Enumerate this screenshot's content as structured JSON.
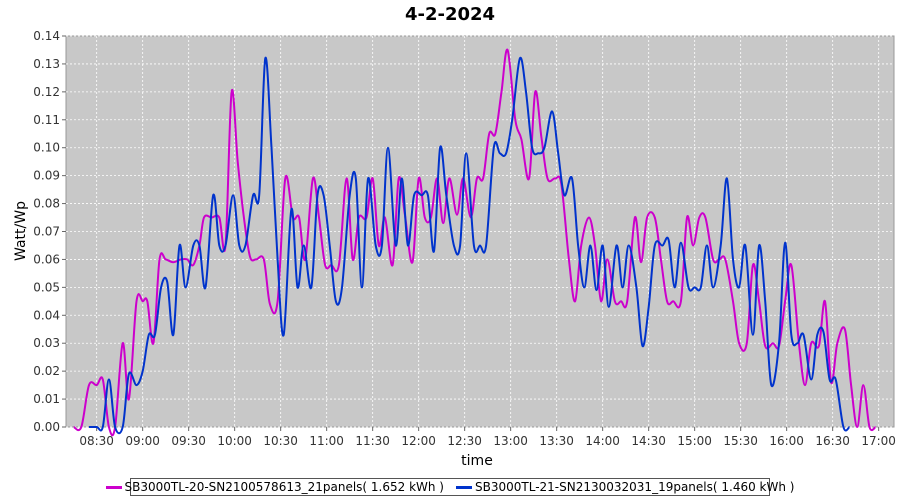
{
  "chart_data": {
    "type": "line",
    "title": "4-2-2024",
    "xlabel": "time",
    "ylabel": "Watt/Wp",
    "x_ticks": [
      "08:30",
      "09:00",
      "09:30",
      "10:00",
      "10:30",
      "11:00",
      "11:30",
      "12:00",
      "12:30",
      "13:00",
      "13:30",
      "14:00",
      "14:30",
      "15:00",
      "15:30",
      "16:00",
      "16:30",
      "17:00"
    ],
    "y_ticks": [
      "0.00",
      "0.01",
      "0.02",
      "0.03",
      "0.04",
      "0.05",
      "0.06",
      "0.07",
      "0.08",
      "0.09",
      "0.10",
      "0.11",
      "0.12",
      "0.13",
      "0.14"
    ],
    "xlim": [
      "08:10",
      "17:10"
    ],
    "ylim": [
      0,
      0.14
    ],
    "grid": true,
    "legend_position": "bottom",
    "series": [
      {
        "name": "SB3000TL-20-SN2100578613_21panels( 1.652 kWh )",
        "color": "#cc00cc",
        "points": [
          [
            "08:15",
            0.0
          ],
          [
            "08:20",
            0.0
          ],
          [
            "08:25",
            0.015
          ],
          [
            "08:30",
            0.015
          ],
          [
            "08:34",
            0.017
          ],
          [
            "08:38",
            0.0
          ],
          [
            "08:42",
            0.0
          ],
          [
            "08:47",
            0.03
          ],
          [
            "08:51",
            0.01
          ],
          [
            "08:56",
            0.045
          ],
          [
            "09:00",
            0.045
          ],
          [
            "09:03",
            0.045
          ],
          [
            "09:07",
            0.03
          ],
          [
            "09:11",
            0.06
          ],
          [
            "09:15",
            0.06
          ],
          [
            "09:20",
            0.059
          ],
          [
            "09:25",
            0.06
          ],
          [
            "09:29",
            0.06
          ],
          [
            "09:33",
            0.058
          ],
          [
            "09:37",
            0.065
          ],
          [
            "09:40",
            0.075
          ],
          [
            "09:45",
            0.075
          ],
          [
            "09:50",
            0.075
          ],
          [
            "09:54",
            0.065
          ],
          [
            "09:58",
            0.12
          ],
          [
            "10:02",
            0.095
          ],
          [
            "10:06",
            0.075
          ],
          [
            "10:10",
            0.061
          ],
          [
            "10:14",
            0.06
          ],
          [
            "10:19",
            0.06
          ],
          [
            "10:23",
            0.044
          ],
          [
            "10:28",
            0.045
          ],
          [
            "10:33",
            0.089
          ],
          [
            "10:38",
            0.075
          ],
          [
            "10:42",
            0.075
          ],
          [
            "10:46",
            0.06
          ],
          [
            "10:51",
            0.089
          ],
          [
            "10:55",
            0.075
          ],
          [
            "10:59",
            0.058
          ],
          [
            "11:03",
            0.058
          ],
          [
            "11:08",
            0.058
          ],
          [
            "11:13",
            0.089
          ],
          [
            "11:17",
            0.06
          ],
          [
            "11:21",
            0.075
          ],
          [
            "11:26",
            0.075
          ],
          [
            "11:30",
            0.089
          ],
          [
            "11:34",
            0.065
          ],
          [
            "11:38",
            0.075
          ],
          [
            "11:43",
            0.058
          ],
          [
            "11:47",
            0.089
          ],
          [
            "11:51",
            0.076
          ],
          [
            "11:56",
            0.059
          ],
          [
            "12:00",
            0.089
          ],
          [
            "12:04",
            0.075
          ],
          [
            "12:08",
            0.075
          ],
          [
            "12:12",
            0.089
          ],
          [
            "12:16",
            0.073
          ],
          [
            "12:20",
            0.089
          ],
          [
            "12:25",
            0.076
          ],
          [
            "12:29",
            0.089
          ],
          [
            "12:34",
            0.075
          ],
          [
            "12:38",
            0.089
          ],
          [
            "12:42",
            0.089
          ],
          [
            "12:46",
            0.105
          ],
          [
            "12:50",
            0.105
          ],
          [
            "12:54",
            0.12
          ],
          [
            "12:58",
            0.135
          ],
          [
            "13:03",
            0.11
          ],
          [
            "13:07",
            0.103
          ],
          [
            "13:12",
            0.089
          ],
          [
            "13:16",
            0.12
          ],
          [
            "13:20",
            0.104
          ],
          [
            "13:24",
            0.089
          ],
          [
            "13:29",
            0.089
          ],
          [
            "13:33",
            0.087
          ],
          [
            "13:38",
            0.06
          ],
          [
            "13:42",
            0.045
          ],
          [
            "13:46",
            0.065
          ],
          [
            "13:51",
            0.075
          ],
          [
            "13:55",
            0.065
          ],
          [
            "13:59",
            0.045
          ],
          [
            "14:03",
            0.06
          ],
          [
            "14:08",
            0.045
          ],
          [
            "14:12",
            0.045
          ],
          [
            "14:16",
            0.045
          ],
          [
            "14:21",
            0.075
          ],
          [
            "14:25",
            0.059
          ],
          [
            "14:29",
            0.075
          ],
          [
            "14:34",
            0.075
          ],
          [
            "14:38",
            0.06
          ],
          [
            "14:42",
            0.045
          ],
          [
            "14:46",
            0.045
          ],
          [
            "14:51",
            0.045
          ],
          [
            "14:55",
            0.075
          ],
          [
            "14:59",
            0.065
          ],
          [
            "15:03",
            0.075
          ],
          [
            "15:07",
            0.075
          ],
          [
            "15:12",
            0.06
          ],
          [
            "15:16",
            0.06
          ],
          [
            "15:20",
            0.06
          ],
          [
            "15:25",
            0.045
          ],
          [
            "15:29",
            0.03
          ],
          [
            "15:34",
            0.03
          ],
          [
            "15:38",
            0.058
          ],
          [
            "15:42",
            0.045
          ],
          [
            "15:46",
            0.029
          ],
          [
            "15:51",
            0.03
          ],
          [
            "15:55",
            0.029
          ],
          [
            "15:59",
            0.045
          ],
          [
            "16:03",
            0.058
          ],
          [
            "16:08",
            0.03
          ],
          [
            "16:12",
            0.015
          ],
          [
            "16:16",
            0.03
          ],
          [
            "16:21",
            0.029
          ],
          [
            "16:25",
            0.045
          ],
          [
            "16:29",
            0.016
          ],
          [
            "16:33",
            0.03
          ],
          [
            "16:38",
            0.035
          ],
          [
            "16:42",
            0.015
          ],
          [
            "16:46",
            0.0
          ],
          [
            "16:50",
            0.015
          ],
          [
            "16:54",
            0.0
          ],
          [
            "16:58",
            0.0
          ]
        ]
      },
      {
        "name": "SB3000TL-21-SN2130032031_19panels( 1.460 kWh )",
        "color": "#0033cc",
        "points": [
          [
            "08:25",
            0.0
          ],
          [
            "08:30",
            0.0
          ],
          [
            "08:34",
            0.0
          ],
          [
            "08:38",
            0.017
          ],
          [
            "08:42",
            0.0
          ],
          [
            "08:47",
            0.0
          ],
          [
            "08:51",
            0.019
          ],
          [
            "08:56",
            0.015
          ],
          [
            "09:00",
            0.02
          ],
          [
            "09:04",
            0.033
          ],
          [
            "09:08",
            0.033
          ],
          [
            "09:12",
            0.05
          ],
          [
            "09:16",
            0.052
          ],
          [
            "09:20",
            0.033
          ],
          [
            "09:24",
            0.065
          ],
          [
            "09:28",
            0.05
          ],
          [
            "09:33",
            0.065
          ],
          [
            "09:37",
            0.065
          ],
          [
            "09:41",
            0.05
          ],
          [
            "09:46",
            0.083
          ],
          [
            "09:50",
            0.065
          ],
          [
            "09:54",
            0.065
          ],
          [
            "09:59",
            0.083
          ],
          [
            "10:03",
            0.065
          ],
          [
            "10:07",
            0.065
          ],
          [
            "10:12",
            0.083
          ],
          [
            "10:16",
            0.083
          ],
          [
            "10:20",
            0.132
          ],
          [
            "10:24",
            0.1
          ],
          [
            "10:28",
            0.06
          ],
          [
            "10:32",
            0.033
          ],
          [
            "10:37",
            0.078
          ],
          [
            "10:41",
            0.05
          ],
          [
            "10:45",
            0.065
          ],
          [
            "10:50",
            0.05
          ],
          [
            "10:54",
            0.083
          ],
          [
            "10:58",
            0.083
          ],
          [
            "11:02",
            0.065
          ],
          [
            "11:06",
            0.045
          ],
          [
            "11:10",
            0.05
          ],
          [
            "11:15",
            0.083
          ],
          [
            "11:19",
            0.089
          ],
          [
            "11:23",
            0.05
          ],
          [
            "11:27",
            0.089
          ],
          [
            "11:32",
            0.065
          ],
          [
            "11:36",
            0.065
          ],
          [
            "11:40",
            0.1
          ],
          [
            "11:45",
            0.065
          ],
          [
            "11:49",
            0.089
          ],
          [
            "11:53",
            0.065
          ],
          [
            "11:57",
            0.083
          ],
          [
            "12:02",
            0.083
          ],
          [
            "12:06",
            0.083
          ],
          [
            "12:10",
            0.063
          ],
          [
            "12:14",
            0.1
          ],
          [
            "12:18",
            0.083
          ],
          [
            "12:23",
            0.065
          ],
          [
            "12:27",
            0.065
          ],
          [
            "12:31",
            0.098
          ],
          [
            "12:36",
            0.065
          ],
          [
            "12:40",
            0.065
          ],
          [
            "12:44",
            0.065
          ],
          [
            "12:49",
            0.1
          ],
          [
            "12:53",
            0.098
          ],
          [
            "12:57",
            0.098
          ],
          [
            "13:01",
            0.11
          ],
          [
            "13:06",
            0.132
          ],
          [
            "13:10",
            0.12
          ],
          [
            "13:14",
            0.1
          ],
          [
            "13:18",
            0.098
          ],
          [
            "13:22",
            0.1
          ],
          [
            "13:27",
            0.113
          ],
          [
            "13:31",
            0.098
          ],
          [
            "13:35",
            0.083
          ],
          [
            "13:40",
            0.089
          ],
          [
            "13:44",
            0.065
          ],
          [
            "13:48",
            0.05
          ],
          [
            "13:52",
            0.065
          ],
          [
            "13:56",
            0.049
          ],
          [
            "14:00",
            0.065
          ],
          [
            "14:04",
            0.043
          ],
          [
            "14:09",
            0.065
          ],
          [
            "14:13",
            0.05
          ],
          [
            "14:17",
            0.065
          ],
          [
            "14:22",
            0.05
          ],
          [
            "14:26",
            0.029
          ],
          [
            "14:30",
            0.043
          ],
          [
            "14:34",
            0.065
          ],
          [
            "14:39",
            0.065
          ],
          [
            "14:43",
            0.067
          ],
          [
            "14:47",
            0.05
          ],
          [
            "14:51",
            0.066
          ],
          [
            "14:56",
            0.05
          ],
          [
            "15:00",
            0.05
          ],
          [
            "15:04",
            0.05
          ],
          [
            "15:08",
            0.065
          ],
          [
            "15:12",
            0.05
          ],
          [
            "15:17",
            0.065
          ],
          [
            "15:21",
            0.089
          ],
          [
            "15:25",
            0.06
          ],
          [
            "15:29",
            0.05
          ],
          [
            "15:33",
            0.065
          ],
          [
            "15:38",
            0.033
          ],
          [
            "15:42",
            0.065
          ],
          [
            "15:46",
            0.045
          ],
          [
            "15:50",
            0.015
          ],
          [
            "15:55",
            0.03
          ],
          [
            "15:59",
            0.066
          ],
          [
            "16:03",
            0.033
          ],
          [
            "16:07",
            0.03
          ],
          [
            "16:11",
            0.033
          ],
          [
            "16:16",
            0.017
          ],
          [
            "16:20",
            0.033
          ],
          [
            "16:24",
            0.034
          ],
          [
            "16:28",
            0.017
          ],
          [
            "16:32",
            0.017
          ],
          [
            "16:37",
            0.0
          ],
          [
            "16:41",
            0.0
          ]
        ]
      }
    ]
  }
}
